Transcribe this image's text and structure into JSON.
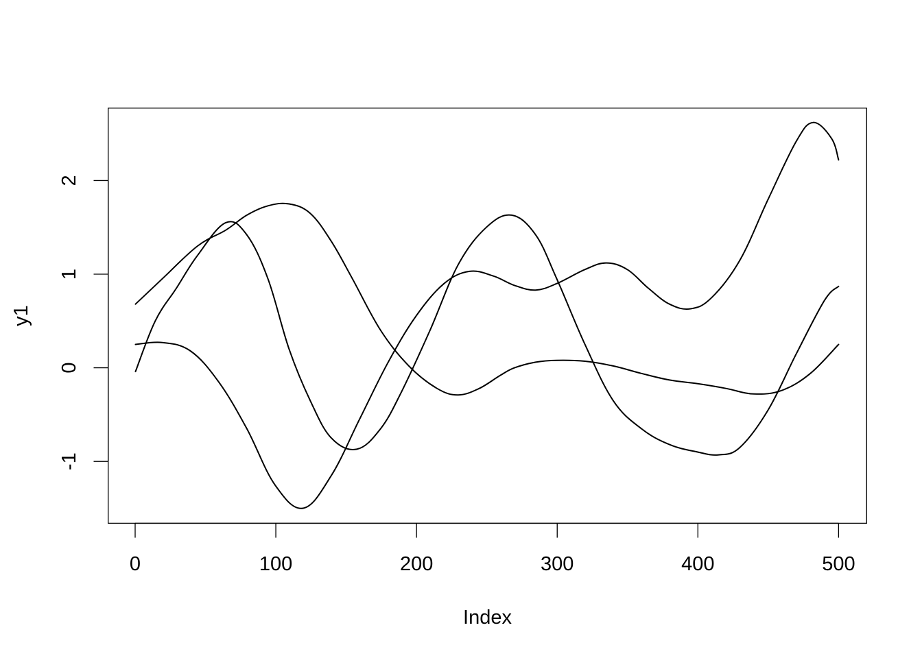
{
  "chart_data": {
    "type": "line",
    "title": "",
    "xlabel": "Index",
    "ylabel": "y1",
    "xlim": [
      1,
      500
    ],
    "ylim": [
      -1.65,
      2.8
    ],
    "x_ticks": [
      0,
      100,
      200,
      300,
      400,
      500
    ],
    "x_tick_labels": [
      "0",
      "100",
      "200",
      "300",
      "400",
      "500"
    ],
    "y_ticks": [
      -1,
      0,
      1,
      2
    ],
    "y_tick_labels": [
      "-1",
      "0",
      "1",
      "2"
    ],
    "grid": false,
    "legend": "none",
    "series": [
      {
        "x": [
          1,
          20,
          45,
          65,
          80,
          95,
          110,
          125,
          140,
          155,
          175,
          195,
          215,
          230,
          245,
          260,
          270,
          285,
          300,
          320,
          340,
          360,
          380,
          400,
          420,
          440,
          460,
          480,
          500
        ],
        "values": [
          0.68,
          0.95,
          1.3,
          1.47,
          1.63,
          1.73,
          1.75,
          1.65,
          1.35,
          0.95,
          0.4,
          0.02,
          -0.22,
          -0.29,
          -0.22,
          -0.08,
          0.0,
          0.06,
          0.08,
          0.07,
          0.02,
          -0.06,
          -0.13,
          -0.17,
          -0.22,
          -0.28,
          -0.24,
          -0.06,
          0.25
        ]
      },
      {
        "x": [
          1,
          15,
          30,
          45,
          65,
          80,
          95,
          110,
          125,
          140,
          158,
          175,
          190,
          210,
          230,
          250,
          268,
          285,
          300,
          320,
          340,
          360,
          380,
          400,
          415,
          430,
          450,
          470,
          490,
          500
        ],
        "values": [
          -0.04,
          0.5,
          0.85,
          1.2,
          1.55,
          1.42,
          0.95,
          0.2,
          -0.35,
          -0.75,
          -0.87,
          -0.65,
          -0.25,
          0.4,
          1.1,
          1.5,
          1.63,
          1.42,
          0.95,
          0.25,
          -0.35,
          -0.65,
          -0.82,
          -0.9,
          -0.93,
          -0.85,
          -0.45,
          0.15,
          0.72,
          0.87
        ]
      },
      {
        "x": [
          1,
          20,
          40,
          60,
          80,
          100,
          120,
          140,
          160,
          180,
          200,
          220,
          238,
          255,
          270,
          285,
          300,
          320,
          335,
          350,
          365,
          380,
          395,
          410,
          430,
          450,
          470,
          482,
          495,
          500
        ],
        "values": [
          0.25,
          0.27,
          0.18,
          -0.15,
          -0.65,
          -1.25,
          -1.5,
          -1.15,
          -0.55,
          0.05,
          0.55,
          0.9,
          1.03,
          0.98,
          0.88,
          0.83,
          0.9,
          1.05,
          1.12,
          1.05,
          0.85,
          0.68,
          0.63,
          0.75,
          1.15,
          1.8,
          2.42,
          2.62,
          2.45,
          2.22
        ]
      }
    ]
  }
}
